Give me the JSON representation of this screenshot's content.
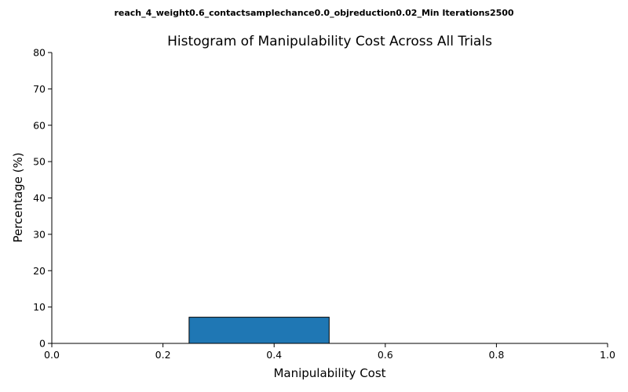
{
  "figure": {
    "suptitle": "reach_4_weight0.6_contactsamplechance0.0_objreduction0.02_Min Iterations2500"
  },
  "chart_data": {
    "type": "bar",
    "title": "Histogram of Manipulability Cost Across All Trials",
    "xlabel": "Manipulability Cost",
    "ylabel": "Percentage (%)",
    "xlim": [
      0.0,
      1.0
    ],
    "ylim": [
      0,
      80
    ],
    "x_ticks": [
      "0.0",
      "0.2",
      "0.4",
      "0.6",
      "0.8",
      "1.0"
    ],
    "y_ticks": [
      "0",
      "10",
      "20",
      "30",
      "40",
      "50",
      "60",
      "70",
      "80"
    ],
    "bins": [
      {
        "start": 0.247,
        "end": 0.499,
        "value": 7.2
      }
    ],
    "bar_color": "#1f77b4",
    "bar_edge_color": "#000000",
    "grid": false,
    "spines": [
      "left",
      "bottom"
    ]
  }
}
